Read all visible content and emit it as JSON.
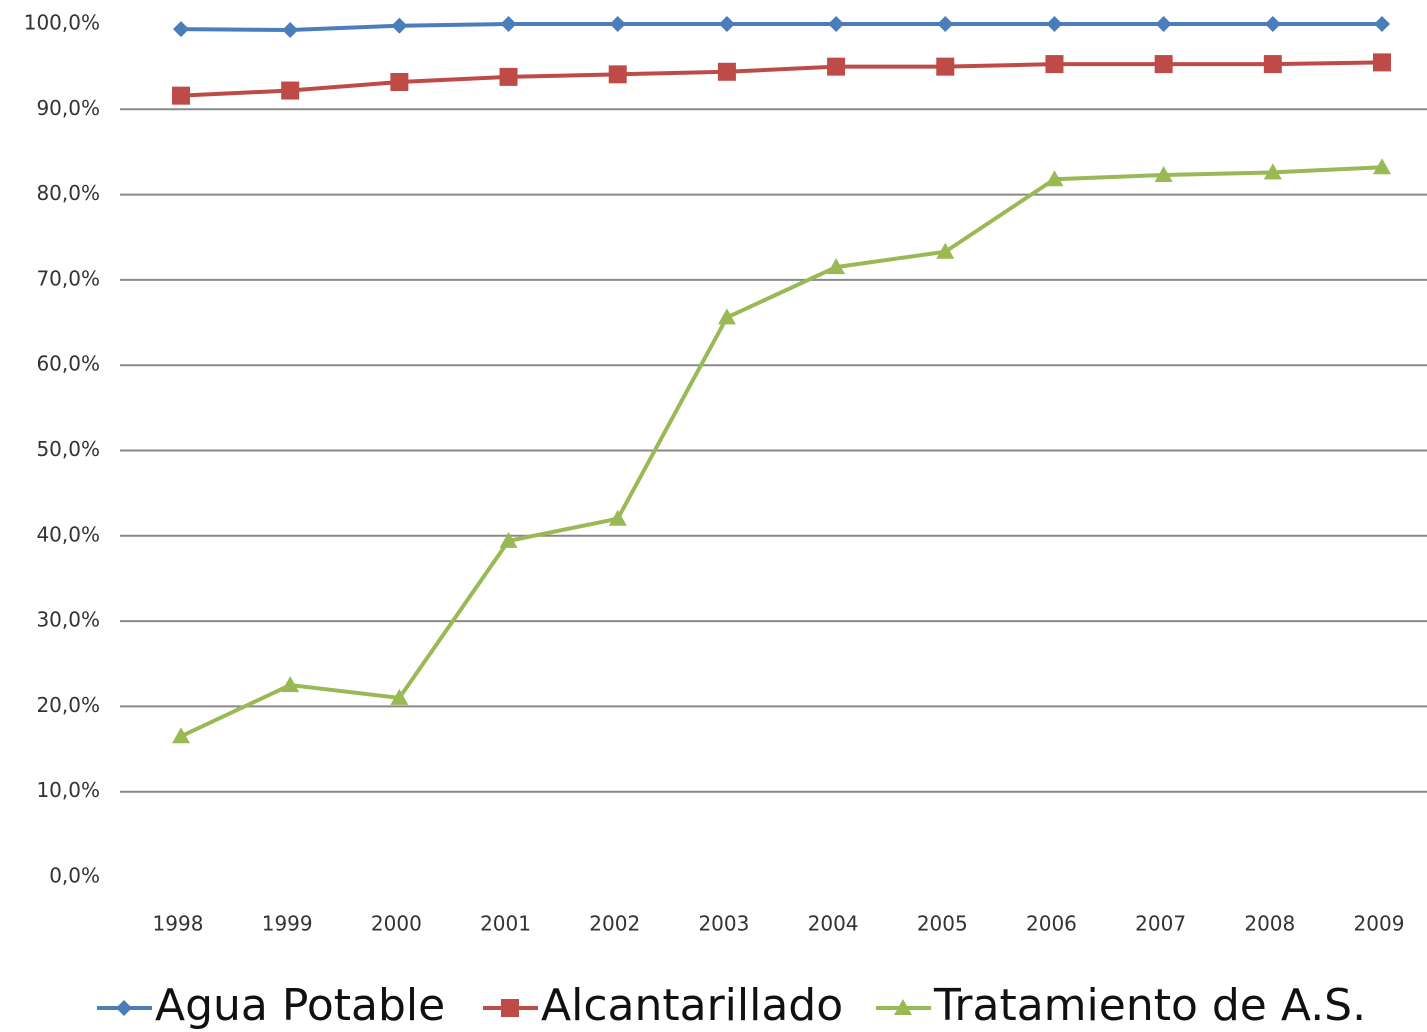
{
  "chart_data": {
    "type": "line",
    "categories": [
      "1998",
      "1999",
      "2000",
      "2001",
      "2002",
      "2003",
      "2004",
      "2005",
      "2006",
      "2007",
      "2008",
      "2009"
    ],
    "series": [
      {
        "name": "Agua Potable",
        "color": "#4a7ebb",
        "marker": "diamond",
        "values": [
          99.4,
          99.3,
          99.8,
          100,
          100,
          100,
          100,
          100,
          100,
          100,
          100,
          100
        ]
      },
      {
        "name": "Alcantarillado",
        "color": "#be4b48",
        "marker": "square",
        "values": [
          91.6,
          92.2,
          93.2,
          93.8,
          94.1,
          94.4,
          95.0,
          95.0,
          95.3,
          95.3,
          95.3,
          95.5
        ]
      },
      {
        "name": "Tratamiento de A.S.",
        "color": "#98b954",
        "marker": "triangle",
        "values": [
          16.5,
          22.5,
          21.0,
          39.4,
          42.0,
          65.6,
          71.5,
          73.3,
          81.8,
          82.3,
          82.6,
          83.2
        ]
      }
    ],
    "ylim": [
      0,
      100
    ],
    "yticks": [
      {
        "value": 0,
        "label": "0,0%"
      },
      {
        "value": 10,
        "label": "10,0%"
      },
      {
        "value": 20,
        "label": "20,0%"
      },
      {
        "value": 30,
        "label": "30,0%"
      },
      {
        "value": 40,
        "label": "40,0%"
      },
      {
        "value": 50,
        "label": "50,0%"
      },
      {
        "value": 60,
        "label": "60,0%"
      },
      {
        "value": 70,
        "label": "70,0%"
      },
      {
        "value": 80,
        "label": "80,0%"
      },
      {
        "value": 90,
        "label": "90,0%"
      },
      {
        "value": 100,
        "label": "100,0%"
      }
    ],
    "grid": true,
    "legend": "bottom"
  }
}
